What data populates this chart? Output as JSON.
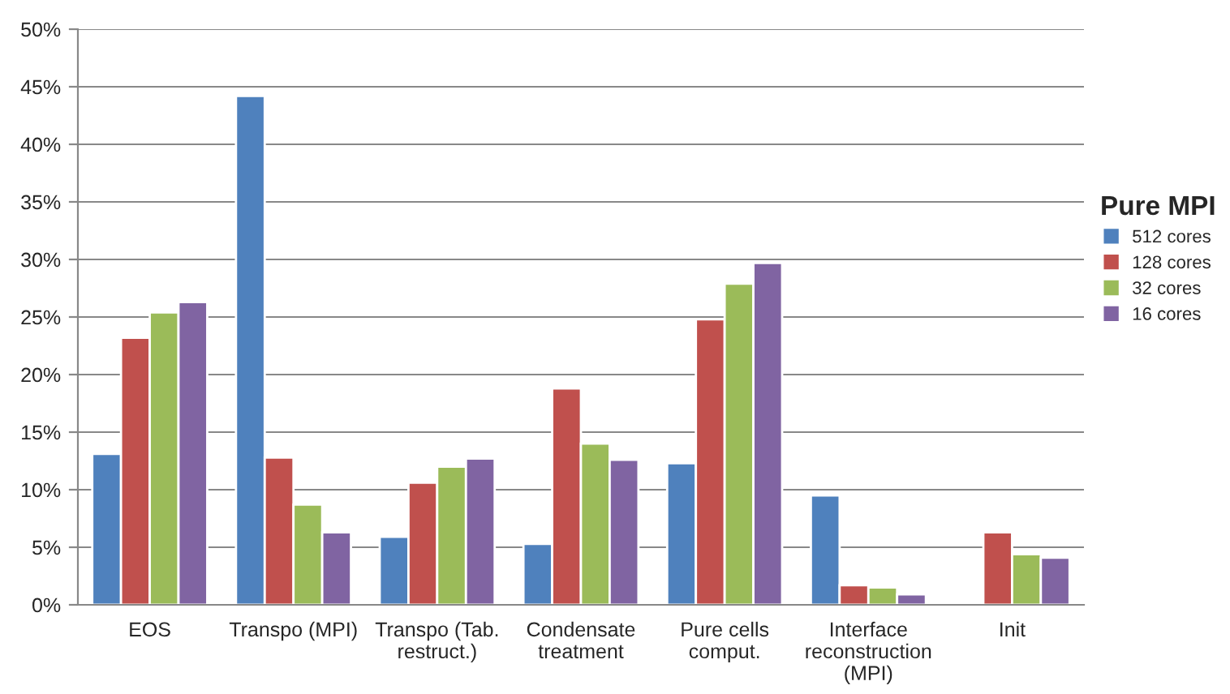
{
  "chart_data": {
    "type": "bar",
    "categories": [
      "EOS",
      "Transpo (MPI)",
      "Transpo (Tab.\nrestruct.)",
      "Condensate\ntreatment",
      "Pure cells\ncomput.",
      "Interface\nreconstruction\n(MPI)",
      "Init"
    ],
    "series": [
      {
        "name": "512 cores",
        "color": "#4f81bd",
        "values": [
          13.1,
          44.2,
          5.9,
          5.3,
          12.3,
          9.5,
          null
        ]
      },
      {
        "name": "128 cores",
        "color": "#c0504d",
        "values": [
          23.2,
          12.8,
          10.6,
          18.8,
          24.8,
          1.7,
          6.3
        ]
      },
      {
        "name": "32 cores",
        "color": "#9bbb59",
        "values": [
          25.4,
          8.7,
          12.0,
          14.0,
          27.9,
          1.5,
          4.4
        ]
      },
      {
        "name": "16 cores",
        "color": "#8064a2",
        "values": [
          26.3,
          6.3,
          12.7,
          12.6,
          29.7,
          0.9,
          4.1
        ]
      }
    ],
    "legend_title": "Pure MPI",
    "legend": "right",
    "ylim": [
      0,
      50
    ],
    "yticks": [
      {
        "value": 0,
        "label": "0%"
      },
      {
        "value": 5,
        "label": "5%"
      },
      {
        "value": 10,
        "label": "10%"
      },
      {
        "value": 15,
        "label": "15%"
      },
      {
        "value": 20,
        "label": "20%"
      },
      {
        "value": 25,
        "label": "25%"
      },
      {
        "value": 30,
        "label": "30%"
      },
      {
        "value": 35,
        "label": "35%"
      },
      {
        "value": 40,
        "label": "40%"
      },
      {
        "value": 45,
        "label": "45%"
      },
      {
        "value": 50,
        "label": "50%"
      }
    ],
    "grid": "y"
  }
}
